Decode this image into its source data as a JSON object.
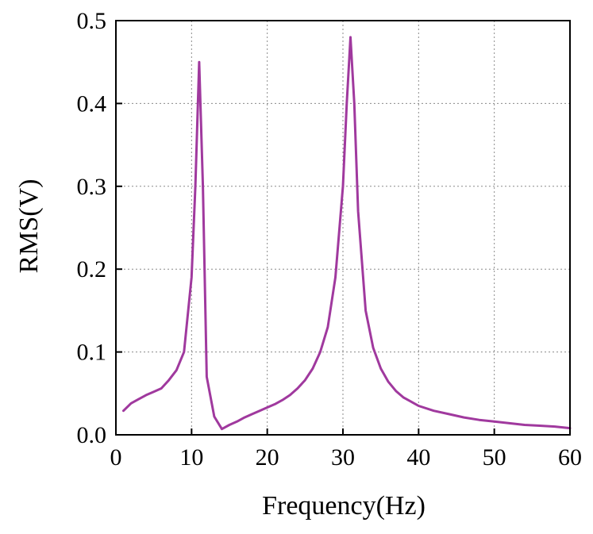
{
  "chart_data": {
    "type": "line",
    "title": "",
    "xlabel": "Frequency(Hz)",
    "ylabel": "RMS(V)",
    "xlim": [
      0,
      60
    ],
    "ylim": [
      0,
      0.5
    ],
    "xticks": [
      0,
      10,
      20,
      30,
      40,
      50,
      60
    ],
    "xtick_labels": [
      "0",
      "10",
      "20",
      "30",
      "40",
      "50",
      "60"
    ],
    "yticks": [
      0.0,
      0.1,
      0.2,
      0.3,
      0.4,
      0.5
    ],
    "ytick_labels": [
      "0.0",
      "0.1",
      "0.2",
      "0.3",
      "0.4",
      "0.5"
    ],
    "grid": true,
    "series": [
      {
        "name": "RMS",
        "color": "#a0399e",
        "x": [
          1,
          2,
          3,
          4,
          5,
          6,
          7,
          8,
          9,
          10,
          10.5,
          11,
          11.5,
          12,
          13,
          14,
          15,
          16,
          17,
          18,
          19,
          20,
          21,
          22,
          23,
          24,
          25,
          26,
          27,
          28,
          29,
          30,
          30.5,
          31,
          31.5,
          32,
          33,
          34,
          35,
          36,
          37,
          38,
          39,
          40,
          42,
          44,
          46,
          48,
          50,
          52,
          54,
          56,
          58,
          60
        ],
        "y": [
          0.029,
          0.038,
          0.043,
          0.048,
          0.052,
          0.056,
          0.066,
          0.078,
          0.1,
          0.19,
          0.3,
          0.45,
          0.3,
          0.07,
          0.022,
          0.007,
          0.012,
          0.016,
          0.021,
          0.025,
          0.029,
          0.033,
          0.037,
          0.042,
          0.048,
          0.056,
          0.066,
          0.08,
          0.1,
          0.13,
          0.19,
          0.3,
          0.4,
          0.48,
          0.4,
          0.27,
          0.15,
          0.105,
          0.08,
          0.064,
          0.053,
          0.045,
          0.04,
          0.035,
          0.029,
          0.025,
          0.021,
          0.018,
          0.016,
          0.014,
          0.012,
          0.011,
          0.01,
          0.008
        ]
      }
    ]
  }
}
